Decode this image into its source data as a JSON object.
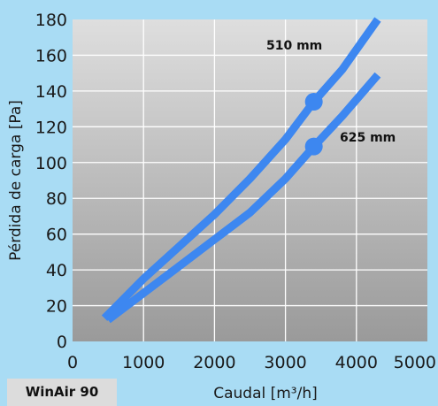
{
  "badge": "WinAir 90",
  "chart_data": {
    "type": "line",
    "title": "",
    "xlabel": "Caudal [m³/h]",
    "ylabel": "Pérdida de carga [Pa]",
    "xlim": [
      0,
      5000
    ],
    "ylim": [
      0,
      180
    ],
    "xticks": [
      0,
      1000,
      2000,
      3000,
      4000,
      5000
    ],
    "yticks": [
      0,
      20,
      40,
      60,
      80,
      100,
      120,
      140,
      160,
      180
    ],
    "grid": true,
    "background_gradient": [
      "#dedede",
      "#9a9a9a"
    ],
    "line_color": "#3d87f0",
    "series": [
      {
        "name": "510 mm",
        "x": [
          450,
          1000,
          1500,
          2000,
          2500,
          3000,
          3400,
          3800,
          4300
        ],
        "y": [
          13,
          35,
          53,
          71,
          91,
          113,
          134,
          152,
          180
        ],
        "marker": {
          "x": 3400,
          "y": 134
        }
      },
      {
        "name": "625 mm",
        "x": [
          500,
          1000,
          1500,
          2000,
          2500,
          3000,
          3400,
          3800,
          4300
        ],
        "y": [
          12,
          27,
          42,
          57,
          72,
          91,
          109,
          126,
          149
        ],
        "marker": {
          "x": 3400,
          "y": 109
        }
      }
    ]
  }
}
